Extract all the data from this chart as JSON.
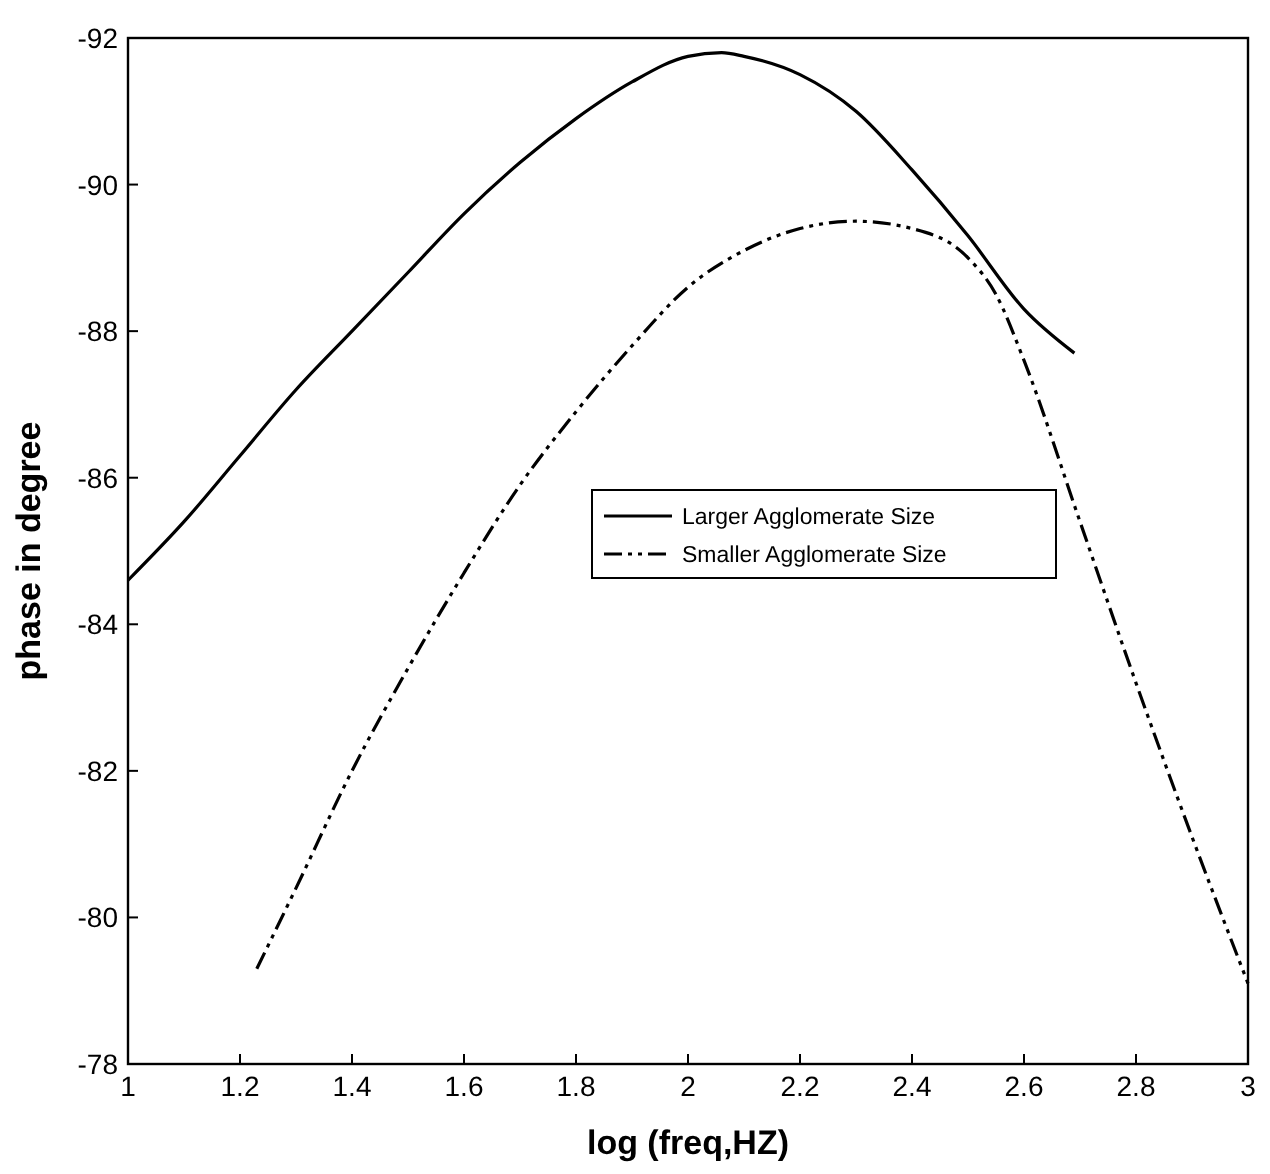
{
  "chart_data": {
    "type": "line",
    "xlabel": "log (freq,HZ)",
    "ylabel": "phase in degree",
    "xlim": [
      1,
      3
    ],
    "xticks": [
      1,
      1.2,
      1.4,
      1.6,
      1.8,
      2,
      2.2,
      2.4,
      2.6,
      2.8,
      3
    ],
    "ylim": [
      -78,
      -92
    ],
    "yticks": [
      -78,
      -80,
      -82,
      -84,
      -86,
      -88,
      -90,
      -92
    ],
    "grid": false,
    "legend": "right",
    "marker": "none",
    "series": [
      {
        "name": "Larger Agglomerate Size",
        "color": "#000000",
        "line_style": "solid",
        "x": [
          1,
          1.1,
          1.2,
          1.3,
          1.4,
          1.5,
          1.6,
          1.7,
          1.8,
          1.9,
          2,
          2.06,
          2.1,
          2.2,
          2.3,
          2.4,
          2.5,
          2.6,
          2.69
        ],
        "values": [
          -84.6,
          -85.4,
          -86.3,
          -87.2,
          -88.0,
          -88.8,
          -89.6,
          -90.3,
          -90.9,
          -91.4,
          -91.75,
          -91.8,
          -91.75,
          -91.5,
          -91.0,
          -90.2,
          -89.3,
          -88.3,
          -87.7
        ]
      },
      {
        "name": "Smaller Agglomerate Size",
        "color": "#000000",
        "line_style": "dashed",
        "x": [
          1.23,
          1.3,
          1.4,
          1.5,
          1.6,
          1.7,
          1.8,
          1.9,
          2,
          2.1,
          2.2,
          2.3,
          2.4,
          2.5,
          2.55,
          2.6,
          2.7,
          2.8,
          2.9,
          3
        ],
        "values": [
          -79.3,
          -80.4,
          -82.0,
          -83.4,
          -84.7,
          -85.9,
          -86.9,
          -87.8,
          -88.6,
          -89.1,
          -89.4,
          -89.5,
          -89.4,
          -89.0,
          -88.5,
          -87.6,
          -85.4,
          -83.2,
          -81.1,
          -79.1
        ]
      }
    ]
  }
}
